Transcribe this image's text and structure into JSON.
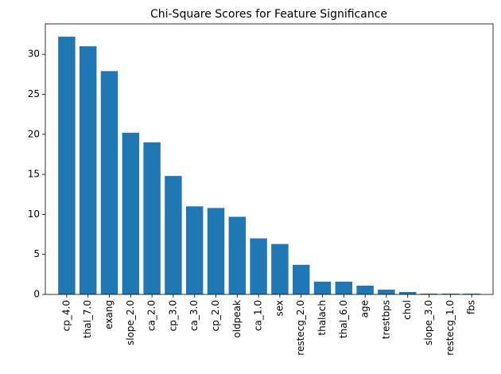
{
  "chart_data": {
    "type": "bar",
    "title": "Chi-Square Scores for Feature Significance",
    "categories": [
      "cp_4.0",
      "thal_7.0",
      "exang",
      "slope_2.0",
      "ca_2.0",
      "cp_3.0",
      "ca_3.0",
      "cp_2.0",
      "oldpeak",
      "ca_1.0",
      "sex",
      "restecg_2.0",
      "thalach",
      "thal_6.0",
      "age",
      "trestbps",
      "chol",
      "slope_3.0",
      "restecg_1.0",
      "fbs"
    ],
    "values": [
      32.2,
      31.0,
      27.9,
      20.2,
      19.0,
      14.8,
      11.0,
      10.8,
      9.7,
      7.0,
      6.3,
      3.7,
      1.6,
      1.6,
      1.1,
      0.6,
      0.3,
      0.1,
      0.1,
      0.1
    ],
    "color": "#1f77b4",
    "ylim": [
      0,
      33.8
    ],
    "yticks": [
      0,
      5,
      10,
      15,
      20,
      25,
      30
    ],
    "grid": false
  }
}
